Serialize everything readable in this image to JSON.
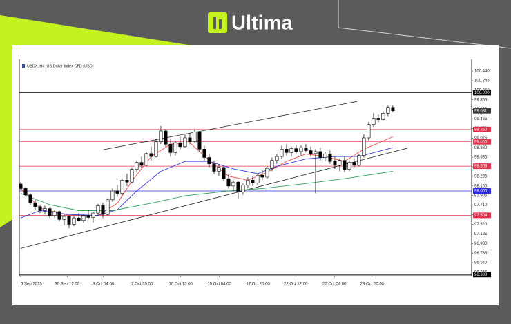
{
  "brand": "Ultima",
  "chart_data": {
    "type": "candlestick",
    "title": "USDX, H4: US Dollar Index CFD (USD)",
    "xlim": [
      0,
      93.3
    ],
    "ylim": [
      96.275,
      100.594
    ],
    "grid": false,
    "xticks": [
      {
        "value": 0,
        "label": "5 Sep 2025"
      },
      {
        "value": 9.6,
        "label": "30 Sep 12:00"
      },
      {
        "value": 17.1,
        "label": "3 Oct 04:00"
      },
      {
        "value": 25.1,
        "label": "7 Oct 20:00"
      },
      {
        "value": 33.1,
        "label": "10 Oct 12:00"
      },
      {
        "value": 41.1,
        "label": "15 Oct 04:00"
      },
      {
        "value": 49.1,
        "label": "17 Oct 20:00"
      },
      {
        "value": 56.9,
        "label": "22 Oct 12:00"
      },
      {
        "value": 64.9,
        "label": "27 Oct 04:00"
      },
      {
        "value": 72.7,
        "label": "29 Oct 20:00"
      }
    ],
    "yticks": [
      {
        "value": 100.44,
        "label": "100.440"
      },
      {
        "value": 100.245,
        "label": "100.245"
      },
      {
        "value": 100.05,
        "label": "100.050"
      },
      {
        "value": 99.855,
        "label": "99.855"
      },
      {
        "value": 99.66,
        "label": "99.660"
      },
      {
        "value": 99.465,
        "label": "99.465"
      },
      {
        "value": 99.27,
        "label": "99.270"
      },
      {
        "value": 99.075,
        "label": "99.075"
      },
      {
        "value": 98.88,
        "label": "98.880"
      },
      {
        "value": 98.685,
        "label": "98.685"
      },
      {
        "value": 98.49,
        "label": "98.490"
      },
      {
        "value": 98.295,
        "label": "98.295"
      },
      {
        "value": 98.1,
        "label": "98.100"
      },
      {
        "value": 97.905,
        "label": "97.905"
      },
      {
        "value": 97.71,
        "label": "97.710"
      },
      {
        "value": 97.515,
        "label": "97.515"
      },
      {
        "value": 97.32,
        "label": "97.320"
      },
      {
        "value": 97.125,
        "label": "97.125"
      },
      {
        "value": 96.93,
        "label": "96.930"
      },
      {
        "value": 96.735,
        "label": "96.735"
      },
      {
        "value": 96.54,
        "label": "96.540"
      },
      {
        "value": 96.345,
        "label": "96.345"
      }
    ],
    "candles": {
      "open": [
        98.14,
        98.05,
        97.92,
        97.76,
        97.68,
        97.6,
        97.64,
        97.5,
        97.58,
        97.42,
        97.48,
        97.32,
        97.45,
        97.4,
        97.5,
        97.46,
        97.55,
        97.7,
        97.52,
        97.82,
        98.0,
        97.95,
        98.22,
        98.18,
        98.44,
        98.58,
        98.52,
        98.76,
        98.7,
        99.0,
        99.22,
        98.95,
        98.78,
        98.98,
        98.9,
        99.08,
        99.0,
        99.2,
        98.85,
        98.68,
        98.55,
        98.4,
        98.48,
        98.25,
        98.1,
        98.18,
        97.98,
        98.12,
        98.22,
        98.16,
        98.32,
        98.28,
        98.46,
        98.62,
        98.7,
        98.85,
        98.78,
        98.86,
        98.8,
        98.88,
        98.82,
        98.76,
        98.8,
        98.68,
        98.75,
        98.6,
        98.52,
        98.62,
        98.44,
        98.58,
        98.52,
        98.72,
        99.08,
        99.35,
        99.48,
        99.45,
        99.58,
        99.7
      ],
      "high": [
        98.18,
        98.08,
        97.95,
        97.82,
        97.72,
        97.7,
        97.66,
        97.62,
        97.6,
        97.52,
        97.5,
        97.48,
        97.55,
        97.52,
        97.62,
        97.58,
        97.74,
        97.76,
        97.85,
        98.05,
        98.12,
        98.25,
        98.35,
        98.48,
        98.62,
        98.7,
        98.8,
        98.9,
        99.05,
        99.32,
        99.26,
        99.05,
        99.02,
        99.1,
        99.15,
        99.18,
        99.25,
        99.22,
        98.92,
        98.75,
        98.62,
        98.52,
        98.5,
        98.35,
        98.22,
        98.2,
        98.15,
        98.28,
        98.3,
        98.35,
        98.42,
        98.5,
        98.68,
        98.75,
        98.92,
        98.95,
        98.9,
        98.94,
        98.92,
        98.95,
        98.9,
        98.85,
        98.88,
        98.8,
        98.82,
        98.7,
        98.66,
        98.7,
        98.62,
        98.66,
        98.75,
        99.15,
        99.4,
        99.58,
        99.55,
        99.62,
        99.75,
        99.74
      ],
      "low": [
        98.02,
        97.9,
        97.72,
        97.62,
        97.55,
        97.52,
        97.45,
        97.46,
        97.38,
        97.3,
        97.24,
        97.28,
        97.38,
        97.35,
        97.42,
        97.36,
        97.5,
        97.45,
        97.5,
        97.78,
        97.88,
        97.92,
        98.1,
        98.15,
        98.38,
        98.46,
        98.5,
        98.62,
        98.68,
        98.95,
        98.9,
        98.7,
        98.72,
        98.85,
        98.88,
        98.95,
        98.98,
        98.8,
        98.62,
        98.48,
        98.35,
        98.3,
        98.2,
        98.05,
        98.0,
        97.85,
        97.92,
        98.05,
        98.1,
        98.12,
        98.22,
        98.25,
        98.4,
        98.55,
        98.65,
        98.72,
        98.7,
        98.76,
        98.72,
        98.78,
        98.7,
        97.95,
        98.62,
        98.6,
        98.55,
        98.45,
        98.4,
        98.38,
        98.4,
        98.48,
        98.5,
        98.68,
        99.02,
        99.3,
        99.4,
        99.42,
        99.52,
        99.6
      ],
      "close": [
        98.05,
        97.92,
        97.76,
        97.68,
        97.6,
        97.64,
        97.5,
        97.58,
        97.42,
        97.48,
        97.32,
        97.45,
        97.4,
        97.5,
        97.46,
        97.55,
        97.7,
        97.52,
        97.82,
        98.0,
        97.95,
        98.22,
        98.18,
        98.44,
        98.58,
        98.52,
        98.76,
        98.7,
        99.0,
        99.22,
        98.95,
        98.78,
        98.98,
        98.9,
        99.08,
        99.0,
        99.2,
        98.85,
        98.68,
        98.55,
        98.4,
        98.48,
        98.25,
        98.1,
        98.18,
        97.98,
        98.12,
        98.22,
        98.16,
        98.32,
        98.28,
        98.46,
        98.62,
        98.7,
        98.85,
        98.78,
        98.86,
        98.8,
        98.88,
        98.82,
        98.76,
        98.8,
        98.68,
        98.75,
        98.6,
        98.52,
        98.62,
        98.44,
        98.58,
        98.52,
        98.72,
        99.08,
        99.35,
        99.48,
        99.45,
        99.58,
        99.7,
        99.63
      ],
      "up_color": "#ffffff",
      "down_color": "#000000"
    },
    "series": [
      {
        "color": "#f04a4a",
        "x": [
          0,
          4,
          10,
          16,
          20,
          23,
          27,
          31,
          35,
          39,
          43,
          47,
          51,
          55,
          59,
          63,
          67,
          71,
          77
        ],
        "values": [
          98.05,
          97.65,
          97.5,
          97.5,
          97.75,
          98.2,
          98.7,
          98.95,
          98.98,
          98.62,
          98.3,
          98.22,
          98.38,
          98.6,
          98.75,
          98.7,
          98.6,
          98.85,
          99.1
        ]
      },
      {
        "color": "#3a3ad8",
        "x": [
          0,
          4,
          10,
          16,
          20,
          24,
          29,
          34,
          39,
          44,
          49,
          53,
          59,
          65,
          70,
          77
        ],
        "values": [
          97.45,
          97.6,
          97.52,
          97.5,
          97.62,
          98.0,
          98.4,
          98.6,
          98.6,
          98.45,
          98.35,
          98.5,
          98.65,
          98.7,
          98.7,
          98.88
        ]
      },
      {
        "color": "#2e9e5c",
        "x": [
          0,
          6,
          12,
          19,
          27,
          34,
          43,
          50,
          59,
          67,
          77
        ],
        "values": [
          97.95,
          97.72,
          97.6,
          97.6,
          97.75,
          97.9,
          98.0,
          98.05,
          98.15,
          98.25,
          98.4
        ]
      }
    ],
    "trendlines": [
      {
        "x": [
          17.1,
          69.6
        ],
        "values": [
          98.84,
          99.82
        ]
      },
      {
        "x": [
          0,
          80
        ],
        "values": [
          96.83,
          98.87
        ]
      }
    ],
    "levels": [
      {
        "value": 100,
        "label": "100.000",
        "color": "#000000"
      },
      {
        "value": 99.25,
        "label": "99.250",
        "color": "#e0304a"
      },
      {
        "value": 99,
        "label": "99.000",
        "color": "#e0304a"
      },
      {
        "value": 98.503,
        "label": "98.503",
        "color": "#e0304a"
      },
      {
        "value": 98,
        "label": "98.000",
        "color": "#2a2ae0"
      },
      {
        "value": 97.504,
        "label": "97.504",
        "color": "#e0304a"
      },
      {
        "value": 96.3,
        "label": "96.300",
        "color": "#000000"
      }
    ],
    "price_tag": {
      "value": 99.631,
      "label": "99.631"
    }
  }
}
